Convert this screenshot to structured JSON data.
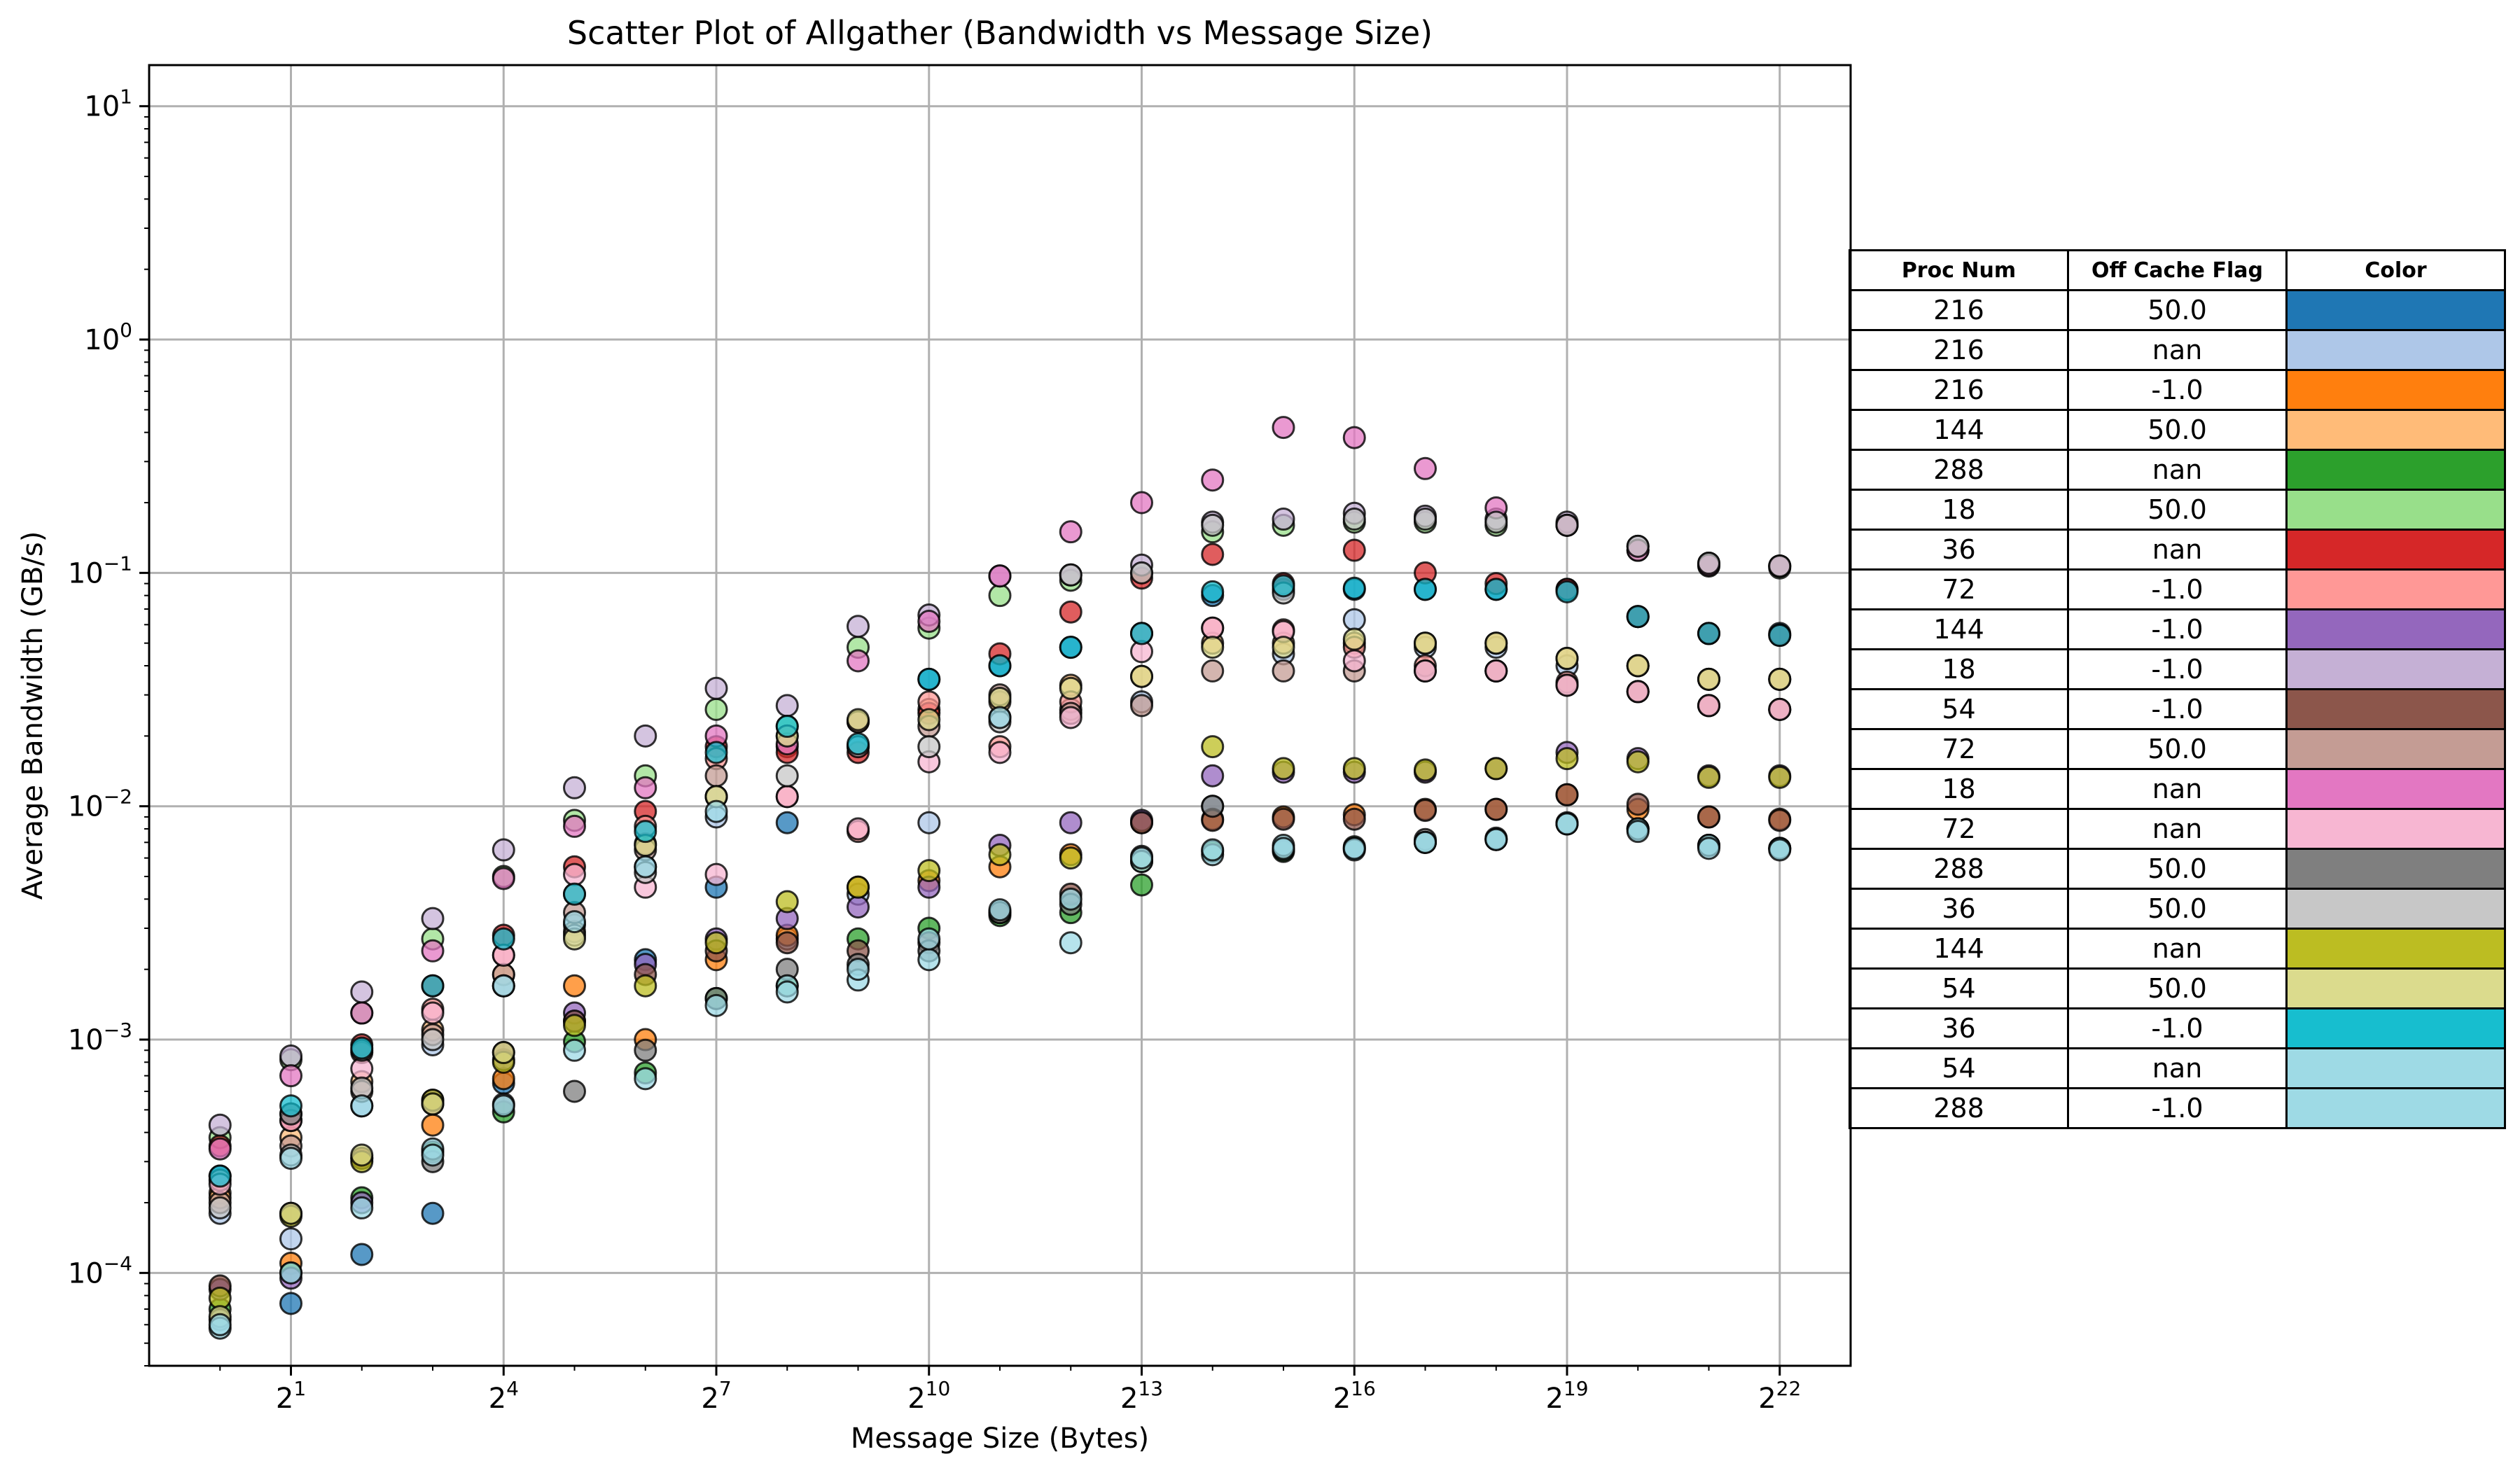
{
  "chart_data": {
    "type": "scatter",
    "title": "Scatter Plot of Allgather (Bandwidth vs Message Size)",
    "xlabel": "Message Size (Bytes)",
    "ylabel": "Average Bandwidth (GB/s)",
    "xscale": "log2",
    "yscale": "log10",
    "xlim": [
      0.5,
      8388608
    ],
    "ylim": [
      4e-05,
      15
    ],
    "grid": true,
    "x_ticks": [
      {
        "value": 2,
        "base": "2",
        "exp": "1"
      },
      {
        "value": 16,
        "base": "2",
        "exp": "4"
      },
      {
        "value": 128,
        "base": "2",
        "exp": "7"
      },
      {
        "value": 1024,
        "base": "2",
        "exp": "10"
      },
      {
        "value": 8192,
        "base": "2",
        "exp": "13"
      },
      {
        "value": 65536,
        "base": "2",
        "exp": "16"
      },
      {
        "value": 524288,
        "base": "2",
        "exp": "19"
      },
      {
        "value": 4194304,
        "base": "2",
        "exp": "22"
      }
    ],
    "y_ticks": [
      {
        "value": 0.0001,
        "base": "10",
        "exp": "−4"
      },
      {
        "value": 0.001,
        "base": "10",
        "exp": "−3"
      },
      {
        "value": 0.01,
        "base": "10",
        "exp": "−2"
      },
      {
        "value": 0.1,
        "base": "10",
        "exp": "−1"
      },
      {
        "value": 1,
        "base": "10",
        "exp": "0"
      },
      {
        "value": 10,
        "base": "10",
        "exp": "1"
      }
    ],
    "x": [
      1,
      2,
      4,
      8,
      16,
      32,
      64,
      128,
      256,
      512,
      1024,
      2048,
      4096,
      8192,
      16384,
      32768,
      65536,
      131072,
      262144,
      524288,
      1048576,
      2097152,
      4194304
    ],
    "series": [
      {
        "color": "#1f77b4",
        "values": [
          0.00026,
          7.4e-05,
          0.00012,
          0.00018,
          0.00065,
          0.0012,
          0.0022,
          0.0045,
          0.0085,
          0.018,
          0.035,
          0.04,
          0.048,
          0.055,
          0.08,
          0.085,
          0.085,
          0.085,
          0.085,
          0.085,
          0.065,
          0.055,
          0.055
        ]
      },
      {
        "color": "#aec7e8",
        "values": [
          0.00018,
          0.00014,
          0.00052,
          0.00095,
          0.0017,
          0.0031,
          0.0055,
          0.009,
          0.0027,
          0.0042,
          0.0085,
          0.024,
          0.026,
          0.028,
          0.01,
          0.045,
          0.063,
          0.048,
          0.048,
          0.04,
          0.04,
          0.035,
          0.035
        ]
      },
      {
        "color": "#ff7f0e",
        "values": [
          0.00022,
          0.00011,
          0.00031,
          0.00043,
          0.00068,
          0.0017,
          0.001,
          0.0022,
          0.0028,
          0.0045,
          0.0048,
          0.0055,
          0.0062,
          0.0085,
          0.0088,
          0.009,
          0.0092,
          0.0097,
          0.0097,
          0.0112,
          0.0097,
          0.009,
          0.0088
        ]
      },
      {
        "color": "#ffbb78",
        "values": [
          0.00021,
          0.00038,
          0.00066,
          0.0011,
          0.0019,
          0.0029,
          0.0069,
          0.011,
          0.018,
          0.023,
          0.026,
          0.028,
          0.033,
          0.036,
          0.05,
          0.05,
          0.05,
          0.05,
          0.05,
          0.043,
          0.04,
          0.035,
          0.035
        ]
      },
      {
        "color": "#2ca02c",
        "values": [
          7e-05,
          0.0001,
          0.00021,
          0.00033,
          0.00049,
          0.00098,
          0.00072,
          0.0015,
          0.0017,
          0.0027,
          0.003,
          0.0034,
          0.0035,
          0.0046,
          0.0064,
          0.0064,
          0.0067,
          0.007,
          0.0072,
          0.0084,
          0.008,
          0.0068,
          0.0066
        ]
      },
      {
        "color": "#98df8a",
        "values": [
          0.00038,
          0.00082,
          0.0013,
          0.0027,
          0.005,
          0.0087,
          0.0135,
          0.026,
          0.022,
          0.048,
          0.058,
          0.08,
          0.093,
          0.1,
          0.15,
          0.16,
          0.165,
          0.165,
          0.16,
          0.16,
          0.125,
          0.107,
          0.105
        ]
      },
      {
        "color": "#d62728",
        "values": [
          0.00035,
          0.00045,
          0.00095,
          0.0017,
          0.0028,
          0.0055,
          0.0095,
          0.018,
          0.017,
          0.017,
          0.025,
          0.045,
          0.068,
          0.095,
          0.12,
          0.09,
          0.125,
          0.1,
          0.09,
          0.085,
          0.065,
          0.055,
          0.054
        ]
      },
      {
        "color": "#ff9896",
        "values": [
          0.00025,
          0.00048,
          0.00088,
          0.00135,
          0.0023,
          0.0042,
          0.0082,
          0.016,
          0.011,
          0.0078,
          0.028,
          0.018,
          0.028,
          0.055,
          0.058,
          0.057,
          0.048,
          0.04,
          0.038,
          0.034,
          0.031,
          0.027,
          0.026
        ]
      },
      {
        "color": "#9467bd",
        "values": [
          8.5e-05,
          9.5e-05,
          0.0002,
          0.00055,
          0.00082,
          0.0013,
          0.0021,
          0.0027,
          0.0033,
          0.0037,
          0.0045,
          0.0068,
          0.0085,
          0.0087,
          0.0135,
          0.014,
          0.014,
          0.014,
          0.0145,
          0.017,
          0.016,
          0.0135,
          0.0135
        ]
      },
      {
        "color": "#c5b0d5",
        "values": [
          0.00043,
          0.00085,
          0.0016,
          0.0033,
          0.0065,
          0.012,
          0.02,
          0.032,
          0.027,
          0.059,
          0.066,
          0.097,
          0.098,
          0.108,
          0.165,
          0.17,
          0.18,
          0.175,
          0.17,
          0.165,
          0.13,
          0.11,
          0.107
        ]
      },
      {
        "color": "#8c564b",
        "values": [
          8.8e-05,
          0.00018,
          0.00031,
          0.00053,
          0.00088,
          0.0012,
          0.0019,
          0.0024,
          0.0026,
          0.0024,
          0.0026,
          0.0035,
          0.0042,
          0.0085,
          0.0087,
          0.0088,
          0.0088,
          0.0096,
          0.0097,
          0.0112,
          0.0102,
          0.009,
          0.0087
        ]
      },
      {
        "color": "#c49c94",
        "values": [
          0.0002,
          0.00035,
          0.0006,
          0.00105,
          0.0019,
          0.0035,
          0.0065,
          0.0135,
          0.02,
          0.023,
          0.022,
          0.03,
          0.025,
          0.027,
          0.038,
          0.038,
          0.038,
          0.038,
          0.038,
          0.033,
          0.031,
          0.027,
          0.026
        ]
      },
      {
        "color": "#e377c2",
        "values": [
          0.00034,
          0.0007,
          0.0013,
          0.0024,
          0.0049,
          0.0082,
          0.012,
          0.02,
          0.0185,
          0.042,
          0.062,
          0.097,
          0.15,
          0.2,
          0.25,
          0.42,
          0.38,
          0.28,
          0.19,
          0.16,
          0.125,
          0.108,
          0.107
        ]
      },
      {
        "color": "#f7b6d2",
        "values": [
          0.00024,
          0.00045,
          0.00075,
          0.0013,
          0.0023,
          0.0051,
          0.0045,
          0.0051,
          0.011,
          0.008,
          0.0155,
          0.017,
          0.024,
          0.046,
          0.058,
          0.056,
          0.042,
          0.038,
          0.038,
          0.033,
          0.031,
          0.027,
          0.026
        ]
      },
      {
        "color": "#7f7f7f",
        "values": [
          6.3e-05,
          0.00048,
          0.0009,
          0.0003,
          0.00053,
          0.0006,
          0.0009,
          0.0015,
          0.002,
          0.0021,
          0.0024,
          0.0035,
          0.0038,
          0.0061,
          0.01,
          0.0065,
          0.0066,
          0.0072,
          0.0073,
          0.0085,
          0.008,
          0.0068,
          0.0066
        ]
      },
      {
        "color": "#c7c7c7",
        "values": [
          0.00019,
          0.00032,
          0.00062,
          0.001,
          0.0017,
          0.0028,
          0.0052,
          0.011,
          0.0135,
          0.018,
          0.018,
          0.023,
          0.098,
          0.1,
          0.16,
          0.082,
          0.17,
          0.17,
          0.165,
          0.16,
          0.13,
          0.11,
          0.107
        ]
      },
      {
        "color": "#bcbd22",
        "values": [
          7.8e-05,
          0.000175,
          0.0003,
          0.00055,
          0.0008,
          0.00115,
          0.0017,
          0.0026,
          0.0039,
          0.0045,
          0.0053,
          0.0062,
          0.006,
          0.0058,
          0.018,
          0.0145,
          0.0145,
          0.0143,
          0.0145,
          0.016,
          0.0155,
          0.0133,
          0.0133
        ]
      },
      {
        "color": "#dbdb8d",
        "values": [
          6.5e-05,
          0.00018,
          0.00032,
          0.00053,
          0.00088,
          0.0027,
          0.0068,
          0.011,
          0.02,
          0.0235,
          0.0235,
          0.029,
          0.032,
          0.036,
          0.048,
          0.048,
          0.052,
          0.05,
          0.05,
          0.043,
          0.04,
          0.035,
          0.035
        ]
      },
      {
        "color": "#17becf",
        "values": [
          0.00026,
          0.00052,
          0.00092,
          0.0017,
          0.0027,
          0.0042,
          0.0078,
          0.017,
          0.022,
          0.0185,
          0.035,
          0.04,
          0.048,
          0.055,
          0.083,
          0.088,
          0.086,
          0.085,
          0.085,
          0.083,
          0.065,
          0.055,
          0.054
        ]
      },
      {
        "color": "#9edae5",
        "values": [
          5.8e-05,
          0.00031,
          0.00052,
          0.00034,
          0.0017,
          0.0032,
          0.0055,
          0.0095,
          0.0017,
          0.0018,
          0.0022,
          0.024,
          0.0026,
          0.0058,
          0.0062,
          0.0068,
          0.0065,
          0.007,
          0.0072,
          0.0084,
          0.008,
          0.0068,
          0.0066
        ]
      },
      {
        "color": "#9edae5",
        "values": [
          6e-05,
          0.0001,
          0.00019,
          0.00032,
          0.00052,
          0.0009,
          0.00068,
          0.0014,
          0.0016,
          0.002,
          0.0027,
          0.0036,
          0.004,
          0.006,
          0.0065,
          0.0066,
          0.0066,
          0.007,
          0.0072,
          0.0084,
          0.0078,
          0.0066,
          0.0065
        ]
      }
    ],
    "legend_table": {
      "placement": "right",
      "headers": [
        "Proc Num",
        "Off Cache Flag",
        "Color"
      ],
      "rows": [
        {
          "proc": "216",
          "flag": "50.0",
          "color": "#1f77b4"
        },
        {
          "proc": "216",
          "flag": "nan",
          "color": "#aec7e8"
        },
        {
          "proc": "216",
          "flag": "-1.0",
          "color": "#ff7f0e"
        },
        {
          "proc": "144",
          "flag": "50.0",
          "color": "#ffbb78"
        },
        {
          "proc": "288",
          "flag": "nan",
          "color": "#2ca02c"
        },
        {
          "proc": "18",
          "flag": "50.0",
          "color": "#98df8a"
        },
        {
          "proc": "36",
          "flag": "nan",
          "color": "#d62728"
        },
        {
          "proc": "72",
          "flag": "-1.0",
          "color": "#ff9896"
        },
        {
          "proc": "144",
          "flag": "-1.0",
          "color": "#9467bd"
        },
        {
          "proc": "18",
          "flag": "-1.0",
          "color": "#c5b0d5"
        },
        {
          "proc": "54",
          "flag": "-1.0",
          "color": "#8c564b"
        },
        {
          "proc": "72",
          "flag": "50.0",
          "color": "#c49c94"
        },
        {
          "proc": "18",
          "flag": "nan",
          "color": "#e377c2"
        },
        {
          "proc": "72",
          "flag": "nan",
          "color": "#f7b6d2"
        },
        {
          "proc": "288",
          "flag": "50.0",
          "color": "#7f7f7f"
        },
        {
          "proc": "36",
          "flag": "50.0",
          "color": "#c7c7c7"
        },
        {
          "proc": "144",
          "flag": "nan",
          "color": "#bcbd22"
        },
        {
          "proc": "54",
          "flag": "50.0",
          "color": "#dbdb8d"
        },
        {
          "proc": "36",
          "flag": "-1.0",
          "color": "#17becf"
        },
        {
          "proc": "54",
          "flag": "nan",
          "color": "#9edae5"
        },
        {
          "proc": "288",
          "flag": "-1.0",
          "color": "#9edae5"
        }
      ]
    }
  }
}
